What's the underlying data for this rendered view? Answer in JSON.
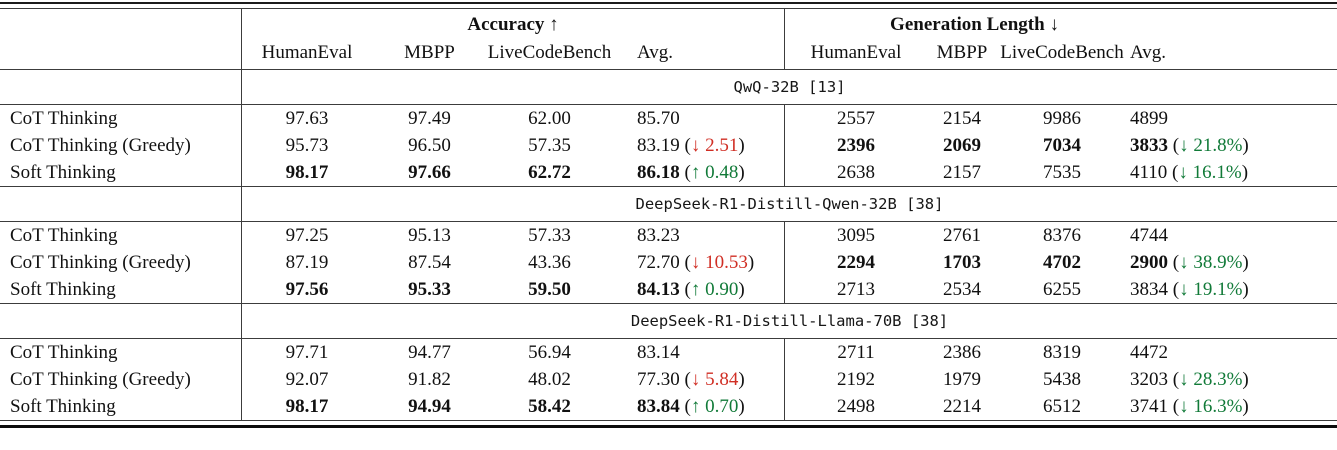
{
  "colors": {
    "red": "#d02e24",
    "green": "#117a38",
    "rule": "#3c3c3c",
    "text": "#111111"
  },
  "table": {
    "groups": [
      {
        "label": "Accuracy",
        "arrow": "↑"
      },
      {
        "label": "Generation Length",
        "arrow": "↓"
      }
    ],
    "col_headers": [
      "HumanEval",
      "MBPP",
      "LiveCodeBench",
      "Avg."
    ],
    "sections": [
      {
        "title": "QwQ-32B [13]",
        "rows": [
          {
            "label": "CoT Thinking",
            "acc": [
              {
                "v": "97.63"
              },
              {
                "v": "97.49"
              },
              {
                "v": "62.00"
              },
              {
                "v": "85.70"
              }
            ],
            "gen": [
              {
                "v": "2557"
              },
              {
                "v": "2154"
              },
              {
                "v": "9986"
              },
              {
                "v": "4899"
              }
            ]
          },
          {
            "label": "CoT Thinking (Greedy)",
            "acc": [
              {
                "v": "95.73"
              },
              {
                "v": "96.50"
              },
              {
                "v": "57.35"
              },
              {
                "v": "83.19",
                "note": "↓ 2.51",
                "note_color": "red"
              }
            ],
            "gen": [
              {
                "v": "2396",
                "bold": true
              },
              {
                "v": "2069",
                "bold": true
              },
              {
                "v": "7034",
                "bold": true
              },
              {
                "v": "3833",
                "bold": true,
                "note": "↓ 21.8%",
                "note_color": "green"
              }
            ]
          },
          {
            "label": "Soft Thinking",
            "acc": [
              {
                "v": "98.17",
                "bold": true
              },
              {
                "v": "97.66",
                "bold": true
              },
              {
                "v": "62.72",
                "bold": true
              },
              {
                "v": "86.18",
                "bold": true,
                "note": "↑ 0.48",
                "note_color": "green"
              }
            ],
            "gen": [
              {
                "v": "2638"
              },
              {
                "v": "2157"
              },
              {
                "v": "7535"
              },
              {
                "v": "4110",
                "note": "↓ 16.1%",
                "note_color": "green"
              }
            ]
          }
        ]
      },
      {
        "title": "DeepSeek-R1-Distill-Qwen-32B [38]",
        "rows": [
          {
            "label": "CoT Thinking",
            "acc": [
              {
                "v": "97.25"
              },
              {
                "v": "95.13"
              },
              {
                "v": "57.33"
              },
              {
                "v": "83.23"
              }
            ],
            "gen": [
              {
                "v": "3095"
              },
              {
                "v": "2761"
              },
              {
                "v": "8376"
              },
              {
                "v": "4744"
              }
            ]
          },
          {
            "label": "CoT Thinking (Greedy)",
            "acc": [
              {
                "v": "87.19"
              },
              {
                "v": "87.54"
              },
              {
                "v": "43.36"
              },
              {
                "v": "72.70",
                "note": "↓ 10.53",
                "note_color": "red"
              }
            ],
            "gen": [
              {
                "v": "2294",
                "bold": true
              },
              {
                "v": "1703",
                "bold": true
              },
              {
                "v": "4702",
                "bold": true
              },
              {
                "v": "2900",
                "bold": true,
                "note": "↓ 38.9%",
                "note_color": "green"
              }
            ]
          },
          {
            "label": "Soft Thinking",
            "acc": [
              {
                "v": "97.56",
                "bold": true
              },
              {
                "v": "95.33",
                "bold": true
              },
              {
                "v": "59.50",
                "bold": true
              },
              {
                "v": "84.13",
                "bold": true,
                "note": "↑ 0.90",
                "note_color": "green"
              }
            ],
            "gen": [
              {
                "v": "2713"
              },
              {
                "v": "2534"
              },
              {
                "v": "6255"
              },
              {
                "v": "3834",
                "note": "↓ 19.1%",
                "note_color": "green"
              }
            ]
          }
        ]
      },
      {
        "title": "DeepSeek-R1-Distill-Llama-70B [38]",
        "rows": [
          {
            "label": "CoT Thinking",
            "acc": [
              {
                "v": "97.71"
              },
              {
                "v": "94.77"
              },
              {
                "v": "56.94"
              },
              {
                "v": "83.14"
              }
            ],
            "gen": [
              {
                "v": "2711"
              },
              {
                "v": "2386"
              },
              {
                "v": "8319"
              },
              {
                "v": "4472"
              }
            ]
          },
          {
            "label": "CoT Thinking (Greedy)",
            "acc": [
              {
                "v": "92.07"
              },
              {
                "v": "91.82"
              },
              {
                "v": "48.02"
              },
              {
                "v": "77.30",
                "note": "↓ 5.84",
                "note_color": "red"
              }
            ],
            "gen": [
              {
                "v": "2192"
              },
              {
                "v": "1979"
              },
              {
                "v": "5438"
              },
              {
                "v": "3203",
                "note": "↓ 28.3%",
                "note_color": "green"
              }
            ]
          },
          {
            "label": "Soft Thinking",
            "acc": [
              {
                "v": "98.17",
                "bold": true
              },
              {
                "v": "94.94",
                "bold": true
              },
              {
                "v": "58.42",
                "bold": true
              },
              {
                "v": "83.84",
                "bold": true,
                "note": "↑ 0.70",
                "note_color": "green"
              }
            ],
            "gen": [
              {
                "v": "2498"
              },
              {
                "v": "2214"
              },
              {
                "v": "6512"
              },
              {
                "v": "3741",
                "note": "↓ 16.3%",
                "note_color": "green"
              }
            ]
          }
        ]
      }
    ]
  }
}
